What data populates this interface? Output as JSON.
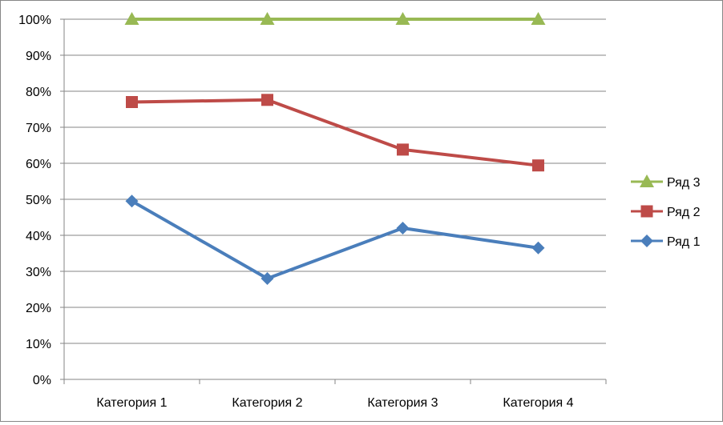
{
  "chart_data": {
    "type": "line",
    "categories": [
      "Категория 1",
      "Категория 2",
      "Категория 3",
      "Категория 4"
    ],
    "y_ticks": [
      "0%",
      "10%",
      "20%",
      "30%",
      "40%",
      "50%",
      "60%",
      "70%",
      "80%",
      "90%",
      "100%"
    ],
    "ylim": [
      0,
      100
    ],
    "y_unit": "%",
    "grid": true,
    "legend_position": "right",
    "series": [
      {
        "name": "Ряд 1",
        "values": [
          49.5,
          28,
          42,
          36.5
        ],
        "color": "#4a7ebb",
        "marker": "diamond"
      },
      {
        "name": "Ряд 2",
        "values": [
          77,
          77.6,
          63.8,
          59.4
        ],
        "color": "#be4b48",
        "marker": "square"
      },
      {
        "name": "Ряд 3",
        "values": [
          100,
          100,
          100,
          100
        ],
        "color": "#98b954",
        "marker": "triangle"
      }
    ]
  }
}
